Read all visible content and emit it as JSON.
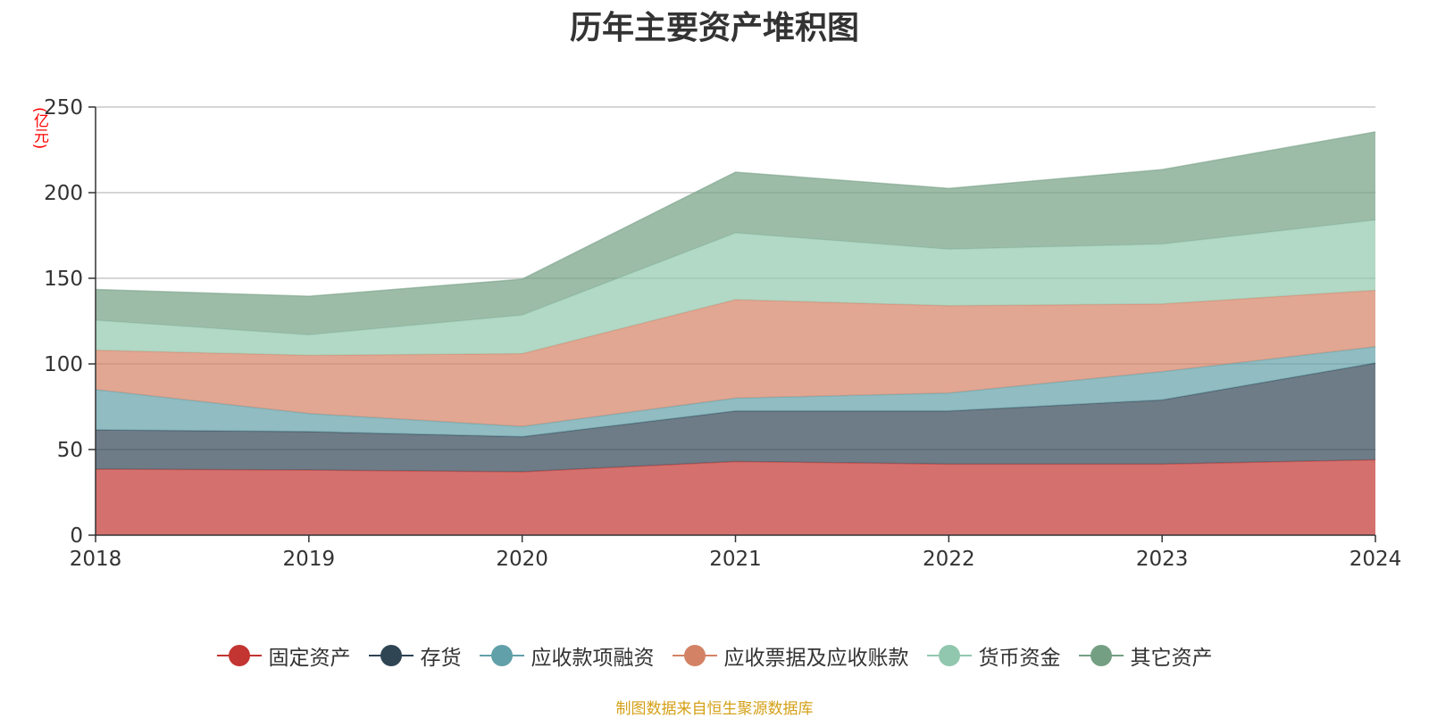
{
  "title": "历年主要资产堆积图",
  "unit_label": "(亿元)",
  "source_note": "制图数据来自恒生聚源数据库",
  "chart_data": {
    "type": "area",
    "stacked": true,
    "title": "历年主要资产堆积图",
    "ylabel": "(亿元)",
    "categories": [
      "2018",
      "2019",
      "2020",
      "2021",
      "2022",
      "2023",
      "2024"
    ],
    "ylim": [
      0,
      250
    ],
    "yticks": [
      0,
      50,
      100,
      150,
      200,
      250
    ],
    "grid": true,
    "legend_position": "bottom",
    "series": [
      {
        "name": "固定资产",
        "color": "#c23531",
        "values": [
          38.5,
          38.0,
          37.0,
          43.0,
          41.5,
          41.5,
          44.0
        ]
      },
      {
        "name": "存货",
        "color": "#2f4554",
        "values": [
          23.0,
          22.5,
          20.5,
          29.5,
          31.0,
          37.5,
          56.5
        ]
      },
      {
        "name": "应收款项融资",
        "color": "#61a0a8",
        "values": [
          23.5,
          10.5,
          6.0,
          7.5,
          10.5,
          16.5,
          9.5
        ]
      },
      {
        "name": "应收票据及应收账款",
        "color": "#d48265",
        "values": [
          23.0,
          34.0,
          42.5,
          57.5,
          51.0,
          39.5,
          33.0
        ]
      },
      {
        "name": "货币资金",
        "color": "#91c7ae",
        "values": [
          17.5,
          12.0,
          22.5,
          39.0,
          33.0,
          35.0,
          41.0
        ]
      },
      {
        "name": "其它资产",
        "color": "#749f83",
        "values": [
          18.0,
          22.5,
          21.0,
          35.5,
          35.5,
          43.5,
          51.5
        ]
      }
    ]
  }
}
